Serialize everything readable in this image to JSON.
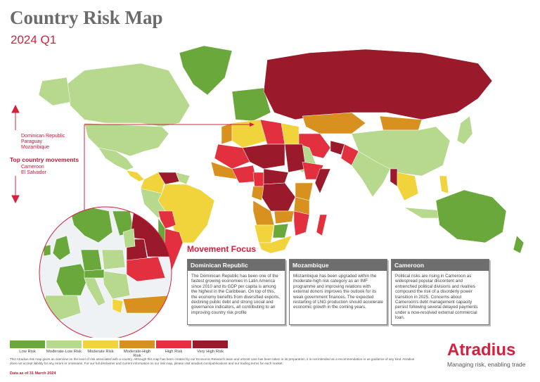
{
  "header": {
    "title": "Country Risk Map",
    "subtitle": "2024 Q1"
  },
  "movements": {
    "label": "Top country movements",
    "upgrades": [
      "Dominican Republic",
      "Paraguay",
      "Mozambique"
    ],
    "downgrades": [
      "Cameroon",
      "El Salvador"
    ]
  },
  "focus": {
    "title": "Movement Focus",
    "cards": [
      {
        "title": "Dominican Republic",
        "text": "The Dominican Republic has been one of the fastest growing economies in Latin America since 2010 and its GDP per capita is among the highest in the Caribbean. On top of this, the economy benefits from diversified exports, declining public debt and strong social and governance indicators, all contributing to an improving country risk profile"
      },
      {
        "title": "Mozambique",
        "text": "Mozambique has been upgraded within the moderate-high risk category as an IMF programme and improving relations with external donors improves the outlook for its weak government finances. The expected restarting of LNG production should accelerate economic growth in the coming years."
      },
      {
        "title": "Cameroon",
        "text": "Political risks are rising in Cameroon as widespread popular discontent and entrenched political divisions and rivalries compound the risk of a disorderly power transition in 2025. Concerns about Cameroon's debt management capacity persist following several delayed payments under a now-resolved external commercial loan."
      }
    ]
  },
  "legend": [
    {
      "label": "Low Risk",
      "color": "#6aa83c"
    },
    {
      "label": "Moderate-Low Risk",
      "color": "#b6d98e"
    },
    {
      "label": "Moderate Risk",
      "color": "#f1d33b"
    },
    {
      "label": "Moderate-High Risk",
      "color": "#d8901f"
    },
    {
      "label": "High Risk",
      "color": "#e2303f"
    },
    {
      "label": "Very High Risk",
      "color": "#9a1a2b"
    }
  ],
  "footer": {
    "disclaimer": "This Atradius risk map gives an overview on the level of risk associated with a country. Although this map has been created by our Economic Research team and utmost care has been taken in its preparation, it is not intended as a recommendation or as guidance of any kind. Atradius does not accept liability for any errors or omissions. For our full disclaimer and current information on our risk map, please visit atradius.com/publications and our trading terms for each market.",
    "date": "Data as of 31 March 2024"
  },
  "brand": {
    "name": "Atradius",
    "tagline": "Managing risk, enabling trade"
  }
}
